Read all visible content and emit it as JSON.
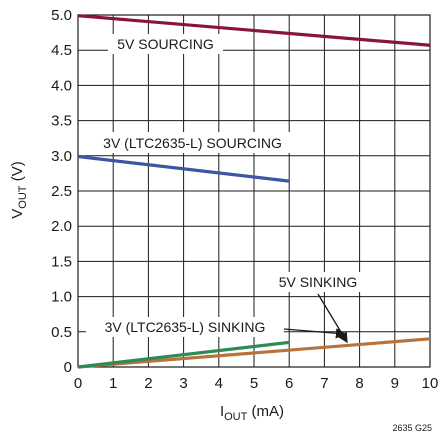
{
  "chart_data": {
    "type": "line",
    "xlabel": {
      "main": "I",
      "sub": "OUT",
      "unit": " (mA)"
    },
    "ylabel": {
      "main": "V",
      "sub": "OUT",
      "unit": " (V)"
    },
    "xlim": [
      0,
      10
    ],
    "ylim": [
      0,
      5
    ],
    "x_ticks": [
      0,
      1,
      2,
      3,
      4,
      5,
      6,
      7,
      8,
      9,
      10
    ],
    "y_ticks": [
      0,
      0.5,
      1.0,
      1.5,
      2.0,
      2.5,
      3.0,
      3.5,
      4.0,
      4.5,
      5.0
    ],
    "x_tick_labels": [
      "0",
      "1",
      "2",
      "3",
      "4",
      "5",
      "6",
      "7",
      "8",
      "9",
      "10"
    ],
    "y_tick_labels": [
      "0",
      "0.5",
      "1.0",
      "1.5",
      "2.0",
      "2.5",
      "3.0",
      "3.5",
      "4.0",
      "4.5",
      "5.0"
    ],
    "grid": true,
    "series": [
      {
        "name": "5V SOURCING",
        "color": "#8a1538",
        "x": [
          0,
          10
        ],
        "y": [
          4.99,
          4.57
        ]
      },
      {
        "name": "3V (LTC2635-L) SOURCING",
        "color": "#3a56a5",
        "x": [
          0,
          6
        ],
        "y": [
          2.99,
          2.64
        ]
      },
      {
        "name": "5V SINKING",
        "color": "#b8733a",
        "x": [
          0,
          10
        ],
        "y": [
          0,
          0.4
        ]
      },
      {
        "name": "3V (LTC2635-L) SINKING",
        "color": "#2e8b57",
        "x": [
          0,
          6
        ],
        "y": [
          0,
          0.35
        ]
      }
    ],
    "annotations": [
      {
        "text": "5V SOURCING"
      },
      {
        "text": "3V (LTC2635-L) SOURCING"
      },
      {
        "text": "5V SINKING"
      },
      {
        "text": "3V (LTC2635-L) SINKING"
      }
    ],
    "figure_id": "2635 G25"
  }
}
